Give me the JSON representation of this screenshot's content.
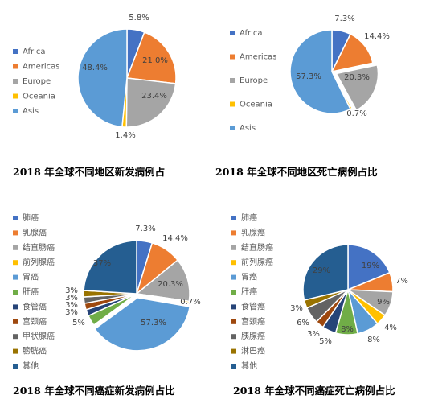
{
  "chart_data": [
    {
      "type": "pie",
      "title": "2018 年全球不同地区新发病例占",
      "categories": [
        "Africa",
        "Americas",
        "Europe",
        "Oceania",
        "Asis"
      ],
      "values": [
        5.8,
        21.0,
        23.4,
        1.4,
        48.4
      ],
      "labels": [
        "5.8%",
        "21.0%",
        "23.4%",
        "1.4%",
        "48.4%"
      ],
      "colors": [
        "#4472C4",
        "#ED7D31",
        "#A5A5A5",
        "#FFC000",
        "#5B9BD5"
      ],
      "legend_position": "left"
    },
    {
      "type": "pie",
      "title": "2018 年全球不同地区死亡病例占比",
      "categories": [
        "Africa",
        "Americas",
        "Europe",
        "Oceania",
        "Asis"
      ],
      "values": [
        7.3,
        14.4,
        20.3,
        0.7,
        57.3
      ],
      "labels": [
        "7.3%",
        "14.4%",
        "20.3%",
        "0.7%",
        "57.3%"
      ],
      "colors": [
        "#4472C4",
        "#ED7D31",
        "#A5A5A5",
        "#FFC000",
        "#5B9BD5"
      ],
      "legend_position": "left"
    },
    {
      "type": "pie",
      "title": "2018 年全球不同癌症新发病例占比",
      "categories": [
        "肺癌",
        "乳腺癌",
        "结直肠癌",
        "前列腺癌",
        "胃癌",
        "肝癌",
        "食管癌",
        "宫颈癌",
        "甲状腺癌",
        "膀胱癌",
        "其他"
      ],
      "values": [
        7.3,
        14.4,
        20.3,
        0.7,
        57.3,
        5,
        3,
        3,
        3,
        3,
        37
      ],
      "labels": [
        "7.3%",
        "14.4%",
        "20.3%",
        "0.7%",
        "57.3%",
        "5%",
        "3%",
        "3%",
        "3%",
        "3%",
        "37%"
      ],
      "colors": [
        "#4472C4",
        "#ED7D31",
        "#A5A5A5",
        "#FFC000",
        "#5B9BD5",
        "#70AD47",
        "#264478",
        "#9E480E",
        "#636363",
        "#997300",
        "#255E91"
      ],
      "legend_position": "left"
    },
    {
      "type": "pie",
      "title": "2018 年全球不同癌症死亡病例占比",
      "categories": [
        "肺癌",
        "乳腺癌",
        "结直肠癌",
        "前列腺癌",
        "胃癌",
        "肝癌",
        "食管癌",
        "宫颈癌",
        "胰腺癌",
        "淋巴癌",
        "其他"
      ],
      "values": [
        19,
        7,
        9,
        4,
        8,
        8,
        5,
        3,
        6,
        3,
        29
      ],
      "labels": [
        "19%",
        "7%",
        "9%",
        "4%",
        "8%",
        "8%",
        "5%",
        "3%",
        "6%",
        "3%",
        "29%"
      ],
      "colors": [
        "#4472C4",
        "#ED7D31",
        "#A5A5A5",
        "#FFC000",
        "#5B9BD5",
        "#70AD47",
        "#264478",
        "#9E480E",
        "#636363",
        "#997300",
        "#255E91"
      ],
      "legend_position": "left"
    }
  ]
}
